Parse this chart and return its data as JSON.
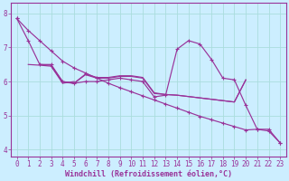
{
  "xlabel": "Windchill (Refroidissement éolien,°C)",
  "bg_color": "#cceeff",
  "line_color": "#993399",
  "grid_color": "#aadddd",
  "axis_color": "#993399",
  "xlim": [
    -0.5,
    23.5
  ],
  "ylim": [
    3.8,
    8.3
  ],
  "yticks": [
    4,
    5,
    6,
    7,
    8
  ],
  "xticks": [
    0,
    1,
    2,
    3,
    4,
    5,
    6,
    7,
    8,
    9,
    10,
    11,
    12,
    13,
    14,
    15,
    16,
    17,
    18,
    19,
    20,
    21,
    22,
    23
  ],
  "series": [
    {
      "x": [
        0,
        1,
        2,
        3,
        4,
        5,
        6,
        7,
        8,
        9,
        10,
        11,
        12,
        13,
        14,
        15,
        16,
        17,
        18,
        19,
        20,
        21,
        22,
        23
      ],
      "y": [
        7.85,
        7.2,
        6.5,
        6.5,
        6.0,
        5.95,
        6.0,
        6.0,
        6.05,
        6.1,
        6.05,
        6.0,
        5.55,
        5.6,
        6.95,
        7.2,
        7.1,
        6.65,
        6.1,
        6.05,
        5.3,
        4.6,
        4.6,
        4.2
      ],
      "has_markers": true
    },
    {
      "x": [
        0,
        1,
        2,
        3,
        4,
        5,
        6,
        7,
        8,
        9,
        10,
        11,
        12,
        13,
        14,
        15,
        16,
        17,
        18,
        19,
        20,
        21,
        22,
        23
      ],
      "y": [
        7.85,
        7.5,
        7.2,
        6.9,
        6.6,
        6.4,
        6.25,
        6.1,
        5.95,
        5.82,
        5.7,
        5.58,
        5.46,
        5.34,
        5.22,
        5.1,
        4.98,
        4.88,
        4.78,
        4.68,
        4.58,
        4.6,
        4.55,
        4.2
      ],
      "has_markers": true
    },
    {
      "x": [
        1,
        2,
        3,
        4,
        5,
        6,
        7,
        8,
        9,
        10,
        11,
        12,
        13,
        14,
        15,
        16,
        17,
        18,
        19,
        20
      ],
      "y": [
        6.5,
        6.48,
        6.45,
        6.0,
        5.95,
        6.2,
        6.1,
        6.1,
        6.15,
        6.15,
        6.1,
        5.65,
        5.62,
        5.6,
        5.56,
        5.52,
        5.48,
        5.44,
        5.4,
        6.05
      ],
      "has_markers": false
    },
    {
      "x": [
        2,
        3,
        4,
        5,
        6,
        7,
        8,
        9,
        10,
        11,
        12,
        13,
        14,
        15,
        16,
        17,
        18,
        19,
        20
      ],
      "y": [
        6.5,
        6.48,
        5.98,
        5.95,
        6.22,
        6.12,
        6.12,
        6.17,
        6.17,
        6.12,
        5.67,
        5.62,
        5.6,
        5.56,
        5.52,
        5.48,
        5.44,
        5.4,
        6.05
      ],
      "has_markers": false
    },
    {
      "x": [
        3,
        4,
        5
      ],
      "y": [
        6.45,
        5.95,
        6.0
      ],
      "has_markers": false
    }
  ],
  "font_color": "#993399",
  "font_size_tick": 5.5,
  "font_size_label": 6.0
}
